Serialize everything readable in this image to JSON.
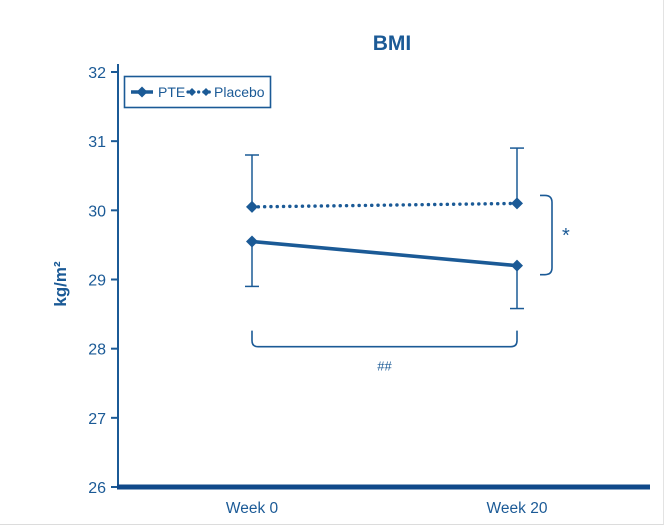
{
  "chart_data": {
    "type": "line",
    "title": "BMI",
    "ylabel": "kg/m²",
    "xlabel": "",
    "categories": [
      "Week 0",
      "Week 20"
    ],
    "ylim": [
      26,
      32
    ],
    "yticks": [
      26,
      27,
      28,
      29,
      30,
      31,
      32
    ],
    "grid": false,
    "legend_position": "top-left",
    "series": [
      {
        "name": "PTE",
        "style": "solid",
        "marker": "diamond",
        "values": [
          29.55,
          29.2
        ],
        "err_low": [
          0.65,
          0.62
        ],
        "err_high": [
          0,
          0
        ]
      },
      {
        "name": "Placebo",
        "style": "dotted",
        "marker": "diamond",
        "values": [
          30.05,
          30.1
        ],
        "err_low": [
          0,
          0
        ],
        "err_high": [
          0.75,
          0.8
        ]
      }
    ],
    "annotations": [
      {
        "type": "bracket-right",
        "label": "*",
        "between": [
          "Placebo",
          "PTE"
        ],
        "at": "Week 20"
      },
      {
        "type": "bracket-bottom",
        "label": "##",
        "from": "Week 0",
        "to": "Week 20"
      }
    ],
    "colors": {
      "accent": "#1b5a96",
      "axis": "#10498a",
      "background": "#ffffff"
    }
  }
}
